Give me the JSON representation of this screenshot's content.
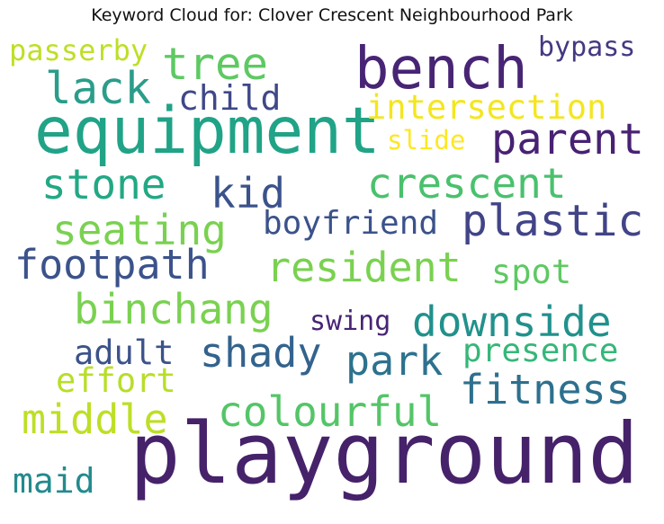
{
  "title": "Keyword Cloud for: Clover Crescent Neighbourhood Park",
  "words": [
    {
      "text": "playground",
      "color": "#46226a"
    },
    {
      "text": "equipment",
      "color": "#20a386"
    },
    {
      "text": "bench",
      "color": "#482475"
    },
    {
      "text": "parent",
      "color": "#482173"
    },
    {
      "text": "plastic",
      "color": "#414487"
    },
    {
      "text": "tree",
      "color": "#5ec962"
    },
    {
      "text": "lack",
      "color": "#2a9d8a"
    },
    {
      "text": "child",
      "color": "#3f4889"
    },
    {
      "text": "intersection",
      "color": "#f4e61e"
    },
    {
      "text": "slide",
      "color": "#fde725"
    },
    {
      "text": "bypass",
      "color": "#453882"
    },
    {
      "text": "passerby",
      "color": "#bddf26"
    },
    {
      "text": "stone",
      "color": "#22a884"
    },
    {
      "text": "kid",
      "color": "#3b528b"
    },
    {
      "text": "crescent",
      "color": "#4ac16d"
    },
    {
      "text": "seating",
      "color": "#7ad151"
    },
    {
      "text": "boyfriend",
      "color": "#3b528b"
    },
    {
      "text": "footpath",
      "color": "#3b528b"
    },
    {
      "text": "resident",
      "color": "#7ad151"
    },
    {
      "text": "spot",
      "color": "#5ec962"
    },
    {
      "text": "binchang",
      "color": "#7ad151"
    },
    {
      "text": "swing",
      "color": "#482475"
    },
    {
      "text": "downside",
      "color": "#21918c"
    },
    {
      "text": "adult",
      "color": "#3b528b"
    },
    {
      "text": "shady",
      "color": "#33638d"
    },
    {
      "text": "park",
      "color": "#2c728e"
    },
    {
      "text": "presence",
      "color": "#35b779"
    },
    {
      "text": "effort",
      "color": "#b8de29"
    },
    {
      "text": "fitness",
      "color": "#2d708e"
    },
    {
      "text": "middle",
      "color": "#bddf26"
    },
    {
      "text": "colourful",
      "color": "#54c568"
    },
    {
      "text": "maid",
      "color": "#238a8d"
    }
  ]
}
